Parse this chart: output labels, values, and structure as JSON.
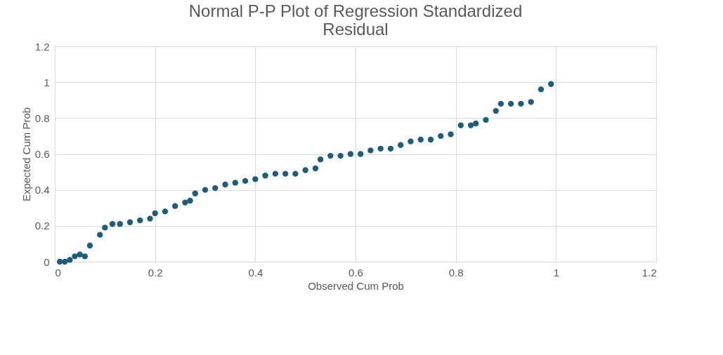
{
  "chart_data": {
    "type": "scatter",
    "title": [
      "Normal P-P Plot of Regression Standardized",
      "Residual"
    ],
    "xlabel": "Observed Cum Prob",
    "ylabel": "Expected Cum Prob",
    "x": [
      0.01,
      0.02,
      0.03,
      0.04,
      0.05,
      0.06,
      0.07,
      0.09,
      0.1,
      0.115,
      0.13,
      0.15,
      0.17,
      0.19,
      0.2,
      0.22,
      0.24,
      0.26,
      0.27,
      0.28,
      0.3,
      0.32,
      0.34,
      0.36,
      0.38,
      0.4,
      0.42,
      0.44,
      0.46,
      0.48,
      0.5,
      0.52,
      0.53,
      0.55,
      0.57,
      0.59,
      0.61,
      0.63,
      0.65,
      0.67,
      0.69,
      0.71,
      0.73,
      0.75,
      0.77,
      0.79,
      0.81,
      0.83,
      0.84,
      0.86,
      0.88,
      0.89,
      0.91,
      0.93,
      0.95,
      0.97,
      0.99
    ],
    "series": [
      {
        "color": "#1c5d7b",
        "values": [
          0.0,
          0.0,
          0.01,
          0.03,
          0.04,
          0.03,
          0.09,
          0.15,
          0.19,
          0.21,
          0.21,
          0.22,
          0.23,
          0.24,
          0.27,
          0.28,
          0.31,
          0.33,
          0.34,
          0.38,
          0.4,
          0.41,
          0.43,
          0.44,
          0.45,
          0.46,
          0.48,
          0.49,
          0.49,
          0.49,
          0.51,
          0.52,
          0.57,
          0.59,
          0.59,
          0.6,
          0.6,
          0.62,
          0.63,
          0.63,
          0.65,
          0.67,
          0.68,
          0.68,
          0.7,
          0.71,
          0.76,
          0.76,
          0.77,
          0.79,
          0.84,
          0.88,
          0.88,
          0.88,
          0.89,
          0.96,
          0.99
        ]
      }
    ],
    "xlim": [
      0,
      1.2
    ],
    "xticks": [
      0,
      0.2,
      0.4,
      0.6,
      0.8,
      1,
      1.2
    ],
    "ylim": [
      0,
      1.2
    ],
    "yticks": [
      0,
      0.2,
      0.4,
      0.6,
      0.8,
      1,
      1.2
    ],
    "grid": true,
    "marker": "circle",
    "legend": false
  }
}
